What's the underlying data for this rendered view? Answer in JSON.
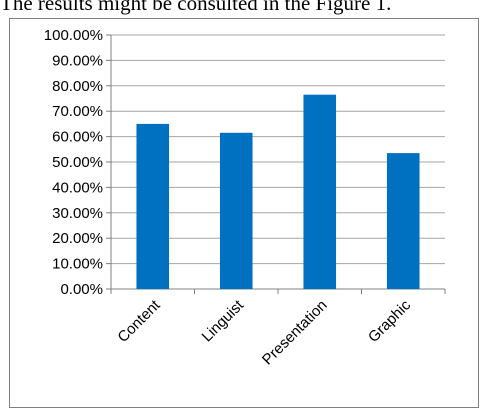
{
  "caption": "The results might be consulted in the Figure 1.",
  "colors": {
    "bar": "#0070C0",
    "gridline": "#A6A6A6",
    "axis": "#808080",
    "frame": "#808080"
  },
  "chart_data": {
    "type": "bar",
    "categories": [
      "Content",
      "Linguist",
      "Presentation",
      "Graphic"
    ],
    "values": [
      65,
      61.5,
      76.5,
      53.5
    ],
    "value_unit": "percent",
    "title": "",
    "xlabel": "",
    "ylabel": "",
    "ylim": [
      0,
      100
    ],
    "ytick_step": 10,
    "ytick_labels": [
      "0.00%",
      "10.00%",
      "20.00%",
      "30.00%",
      "40.00%",
      "50.00%",
      "60.00%",
      "70.00%",
      "80.00%",
      "90.00%",
      "100.00%"
    ],
    "grid": true,
    "legend": "none"
  }
}
